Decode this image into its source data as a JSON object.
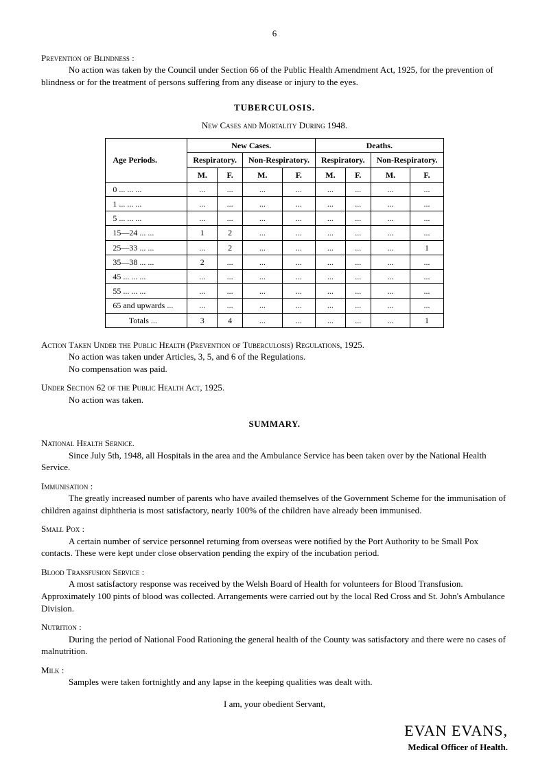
{
  "page_number": "6",
  "prevention": {
    "heading": "Prevention of Blindness :",
    "body": "No action was taken by the Council under Section 66 of the Public Health Amendment Act, 1925, for the prevention of blindness or for the treatment of persons suffering from any disease or injury to the eyes."
  },
  "tb": {
    "title": "TUBERCULOSIS.",
    "subtitle": "New Cases and Mortality During 1948.",
    "headers": {
      "new_cases": "New Cases.",
      "deaths": "Deaths.",
      "age_periods": "Age Periods.",
      "respiratory": "Respiratory.",
      "non_respiratory": "Non-Respiratory.",
      "m": "M.",
      "f": "F."
    },
    "rows": [
      {
        "label": "0   ...   ...   ...",
        "vals": [
          "...",
          "...",
          "...",
          "...",
          "...",
          "...",
          "...",
          "..."
        ]
      },
      {
        "label": "1   ...   ...   ...",
        "vals": [
          "...",
          "...",
          "...",
          "...",
          "...",
          "...",
          "...",
          "..."
        ]
      },
      {
        "label": "5   ...   ...   ...",
        "vals": [
          "...",
          "...",
          "...",
          "...",
          "...",
          "...",
          "...",
          "..."
        ]
      },
      {
        "label": "15—24   ...   ...",
        "vals": [
          "1",
          "2",
          "...",
          "...",
          "...",
          "...",
          "...",
          "..."
        ]
      },
      {
        "label": "25—33   ...   ...",
        "vals": [
          "...",
          "2",
          "...",
          "...",
          "...",
          "...",
          "...",
          "1"
        ]
      },
      {
        "label": "35—38   ...   ...",
        "vals": [
          "2",
          "...",
          "...",
          "...",
          "...",
          "...",
          "...",
          "..."
        ]
      },
      {
        "label": "45   ...   ...   ...",
        "vals": [
          "...",
          "...",
          "...",
          "...",
          "...",
          "...",
          "...",
          "..."
        ]
      },
      {
        "label": "55   ...   ...   ...",
        "vals": [
          "...",
          "...",
          "...",
          "...",
          "...",
          "...",
          "...",
          "..."
        ]
      },
      {
        "label": "65 and upwards ...",
        "vals": [
          "...",
          "...",
          "...",
          "...",
          "...",
          "...",
          "...",
          "..."
        ]
      }
    ],
    "totals": {
      "label": "Totals   ...",
      "vals": [
        "3",
        "4",
        "...",
        "...",
        "...",
        "...",
        "...",
        "1"
      ]
    }
  },
  "action_taken": {
    "heading": "Action Taken Under the Public Health (Prevention of Tuberculosis) Regulations, 1925.",
    "line1": "No action was taken under Articles, 3, 5, and 6 of the Regulations.",
    "line2": "No compensation was paid."
  },
  "under_section": {
    "heading": "Under Section 62 of the Public Health Act, 1925.",
    "line1": "No action was taken."
  },
  "summary_title": "SUMMARY.",
  "national_health": {
    "heading": "National Health Sernice.",
    "body": "Since July 5th, 1948, all Hospitals in the area and the Ambulance Service has been taken over by the National Health Service."
  },
  "immunisation": {
    "heading": "Immunisation :",
    "body": "The greatly increased number of parents who have availed themselves of the Government Scheme for the immunisation of children against diphtheria is most satisfactory, nearly 100% of the children have already been immunised."
  },
  "smallpox": {
    "heading": "Small Pox :",
    "body": "A certain number of service personnel returning from overseas were notified by the Port Authority to be Small Pox contacts.   These were kept under close observation pending the expiry of the incubation period."
  },
  "blood": {
    "heading": "Blood Transfusion Service :",
    "body": "A most satisfactory response was received by the Welsh Board of Health for volunteers for Blood Transfusion.   Approximately 100 pints of blood was collected.   Arrangements were carried out by the local Red Cross and St. John's Ambulance Division."
  },
  "nutrition": {
    "heading": "Nutrition :",
    "body": "During the period of National Food Rationing the general health of the County was satisfactory and there were no cases of malnutrition."
  },
  "milk": {
    "heading": "Milk :",
    "body": "Samples were taken fortnightly and any lapse in the keeping qualities was dealt with."
  },
  "closing": "I am, your obedient Servant,",
  "signature": {
    "name": "EVAN EVANS,",
    "title": "Medical Officer of Health."
  }
}
